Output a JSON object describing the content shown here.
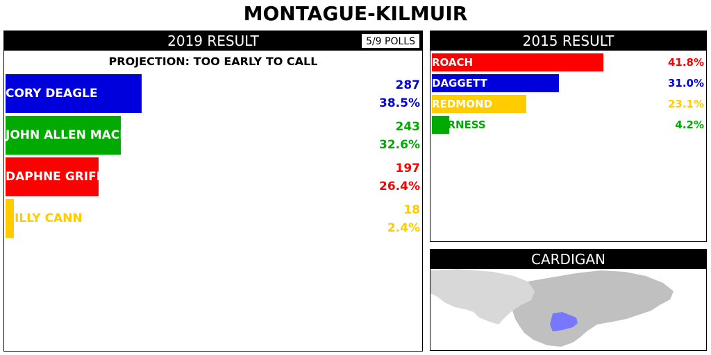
{
  "page": {
    "title": "MONTAGUE-KILMUIR"
  },
  "current": {
    "header": "2019 RESULT",
    "polls": "5/9 POLLS",
    "projection": "PROJECTION: TOO EARLY TO CALL",
    "candidates": [
      {
        "name": "CORY DEAGLE",
        "votes": "287",
        "pct": "38.5%",
        "share": 0.385,
        "color": "#0000dd"
      },
      {
        "name": "JOHN ALLEN MACLEAN",
        "votes": "243",
        "pct": "32.6%",
        "share": 0.326,
        "color": "#00aa00"
      },
      {
        "name": "DAPHNE GRIFFIN",
        "votes": "197",
        "pct": "26.4%",
        "share": 0.264,
        "color": "#ff0000"
      },
      {
        "name": "BILLY CANN",
        "votes": "18",
        "pct": "2.4%",
        "share": 0.024,
        "color": "#ffcc00"
      }
    ]
  },
  "previous": {
    "header": "2015 RESULT",
    "candidates": [
      {
        "name": "ROACH",
        "pct": "41.8%",
        "share": 0.418,
        "color": "#ff0000"
      },
      {
        "name": "DAGGETT",
        "pct": "31.0%",
        "share": 0.31,
        "color": "#0000dd"
      },
      {
        "name": "REDMOND",
        "pct": "23.1%",
        "share": 0.231,
        "color": "#ffcc00"
      },
      {
        "name": "FURNESS",
        "pct": "4.2%",
        "share": 0.042,
        "color": "#00aa00"
      }
    ]
  },
  "region": {
    "header": "CARDIGAN",
    "land_color": "#c0c0c0",
    "other_land_color": "#d8d8d8",
    "district_color": "#7777ff"
  }
}
